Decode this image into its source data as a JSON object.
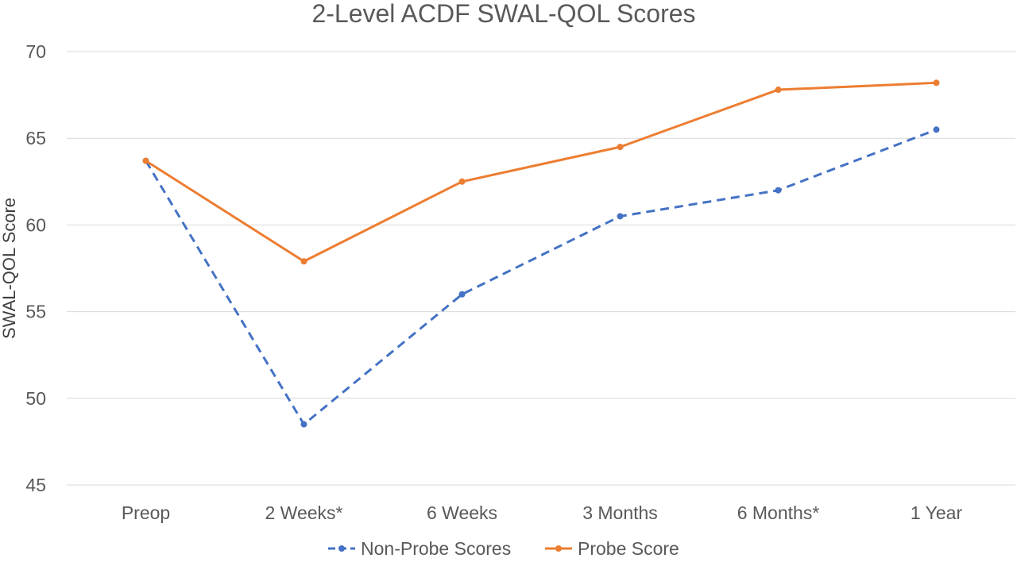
{
  "chart_data": {
    "type": "line",
    "title": "2-Level ACDF SWAL-QOL Scores",
    "xlabel": "",
    "ylabel": "SWAL-QOL Score",
    "categories": [
      "Preop",
      "2 Weeks*",
      "6 Weeks",
      "3 Months",
      "6 Months*",
      "1 Year"
    ],
    "ylim": [
      45,
      70
    ],
    "yticks": [
      45,
      50,
      55,
      60,
      65,
      70
    ],
    "grid": true,
    "legend_position": "bottom",
    "series": [
      {
        "name": "Non-Probe Scores",
        "values": [
          63.7,
          48.5,
          56.0,
          60.5,
          62.0,
          65.5
        ],
        "color": "#4472c4",
        "line_style": "dashed",
        "marker": "circle"
      },
      {
        "name": "Probe Score",
        "values": [
          63.7,
          57.9,
          62.5,
          64.5,
          67.8,
          68.2
        ],
        "color": "#ed7d31",
        "line_style": "solid",
        "marker": "circle"
      }
    ]
  }
}
